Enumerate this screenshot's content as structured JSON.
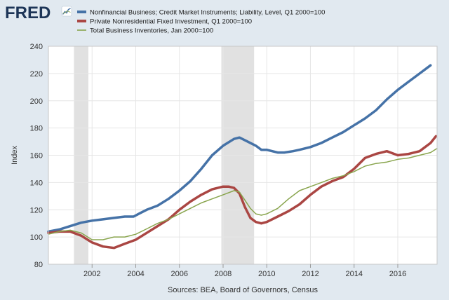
{
  "branding": {
    "logo_text": "FRED",
    "logo_icon": "trend-line-icon",
    "logo_color": "#1d3557"
  },
  "chart_data": {
    "type": "line",
    "ylabel": "Index",
    "ylim": [
      80,
      240
    ],
    "yticks": [
      80,
      100,
      120,
      140,
      160,
      180,
      200,
      220,
      240
    ],
    "xlim": [
      2000.0,
      2017.8
    ],
    "xticks": [
      2002,
      2004,
      2006,
      2008,
      2010,
      2012,
      2014,
      2016
    ],
    "grid": true,
    "legend_placement": "top",
    "recessions": [
      [
        2001.17,
        2001.83
      ],
      [
        2007.92,
        2009.42
      ]
    ],
    "recession_color": "#e1e1e1",
    "source": "Sources: BEA, Board of Governors, Census",
    "series": [
      {
        "name": "Nonfinancial Business; Credit Market Instruments; Liability, Level, Q1 2000=100",
        "color": "#4572a7",
        "width": 3.5,
        "x": [
          2000.0,
          2000.5,
          2001.0,
          2001.5,
          2002.0,
          2002.5,
          2003.0,
          2003.5,
          2003.9,
          2004.2,
          2004.5,
          2005.0,
          2005.5,
          2006.0,
          2006.5,
          2007.0,
          2007.5,
          2008.0,
          2008.5,
          2008.75,
          2009.0,
          2009.5,
          2009.75,
          2010.0,
          2010.5,
          2010.8,
          2011.2,
          2011.5,
          2012.0,
          2012.5,
          2013.0,
          2013.5,
          2014.0,
          2014.5,
          2015.0,
          2015.5,
          2016.0,
          2016.5,
          2017.0,
          2017.5
        ],
        "values": [
          104,
          105.5,
          108,
          110.5,
          112,
          113,
          114,
          115,
          115,
          117.5,
          120,
          123,
          128,
          134,
          141,
          150,
          160,
          167,
          172,
          173,
          171,
          167,
          164,
          164,
          162,
          162,
          163,
          164,
          166,
          169,
          173,
          177,
          182,
          187,
          193,
          201,
          208,
          214,
          220,
          226
        ]
      },
      {
        "name": "Private Nonresidential Fixed Investment, Q1 2000=100",
        "color": "#aa4643",
        "width": 3.5,
        "x": [
          2000.0,
          2000.5,
          2001.0,
          2001.5,
          2002.0,
          2002.5,
          2003.0,
          2003.5,
          2004.0,
          2004.5,
          2005.0,
          2005.5,
          2006.0,
          2006.5,
          2007.0,
          2007.5,
          2008.0,
          2008.25,
          2008.5,
          2008.75,
          2009.0,
          2009.25,
          2009.5,
          2009.75,
          2010.0,
          2010.5,
          2011.0,
          2011.5,
          2012.0,
          2012.5,
          2013.0,
          2013.5,
          2014.0,
          2014.5,
          2015.0,
          2015.5,
          2016.0,
          2016.5,
          2017.0,
          2017.5,
          2017.75
        ],
        "values": [
          103,
          104,
          104,
          101,
          96,
          93,
          92,
          95,
          98,
          103,
          108,
          113,
          120,
          126,
          131,
          135,
          137,
          137,
          136,
          132,
          122,
          114,
          111,
          110,
          111,
          115,
          119,
          124,
          131,
          137,
          141,
          144,
          150,
          158,
          161,
          163,
          160,
          161,
          163,
          169,
          174
        ]
      },
      {
        "name": "Total Business Inventories, Jan 2000=100",
        "color": "#89a54e",
        "width": 1.5,
        "x": [
          2000.0,
          2000.5,
          2001.0,
          2001.5,
          2002.0,
          2002.5,
          2003.0,
          2003.5,
          2004.0,
          2004.5,
          2005.0,
          2005.5,
          2006.0,
          2006.5,
          2007.0,
          2007.5,
          2008.0,
          2008.5,
          2008.75,
          2009.0,
          2009.25,
          2009.5,
          2009.75,
          2010.0,
          2010.5,
          2011.0,
          2011.5,
          2012.0,
          2012.5,
          2013.0,
          2013.5,
          2014.0,
          2014.5,
          2015.0,
          2015.5,
          2016.0,
          2016.5,
          2017.0,
          2017.5,
          2017.8
        ],
        "values": [
          102,
          104,
          105,
          103,
          98,
          98,
          100,
          100,
          102,
          106,
          110,
          113,
          117,
          121,
          125,
          128,
          131,
          134,
          133,
          127,
          121,
          117,
          116,
          117,
          121,
          128,
          134,
          137,
          140,
          143,
          145,
          148,
          152,
          154,
          155,
          157,
          158,
          160,
          162,
          165
        ]
      }
    ]
  }
}
